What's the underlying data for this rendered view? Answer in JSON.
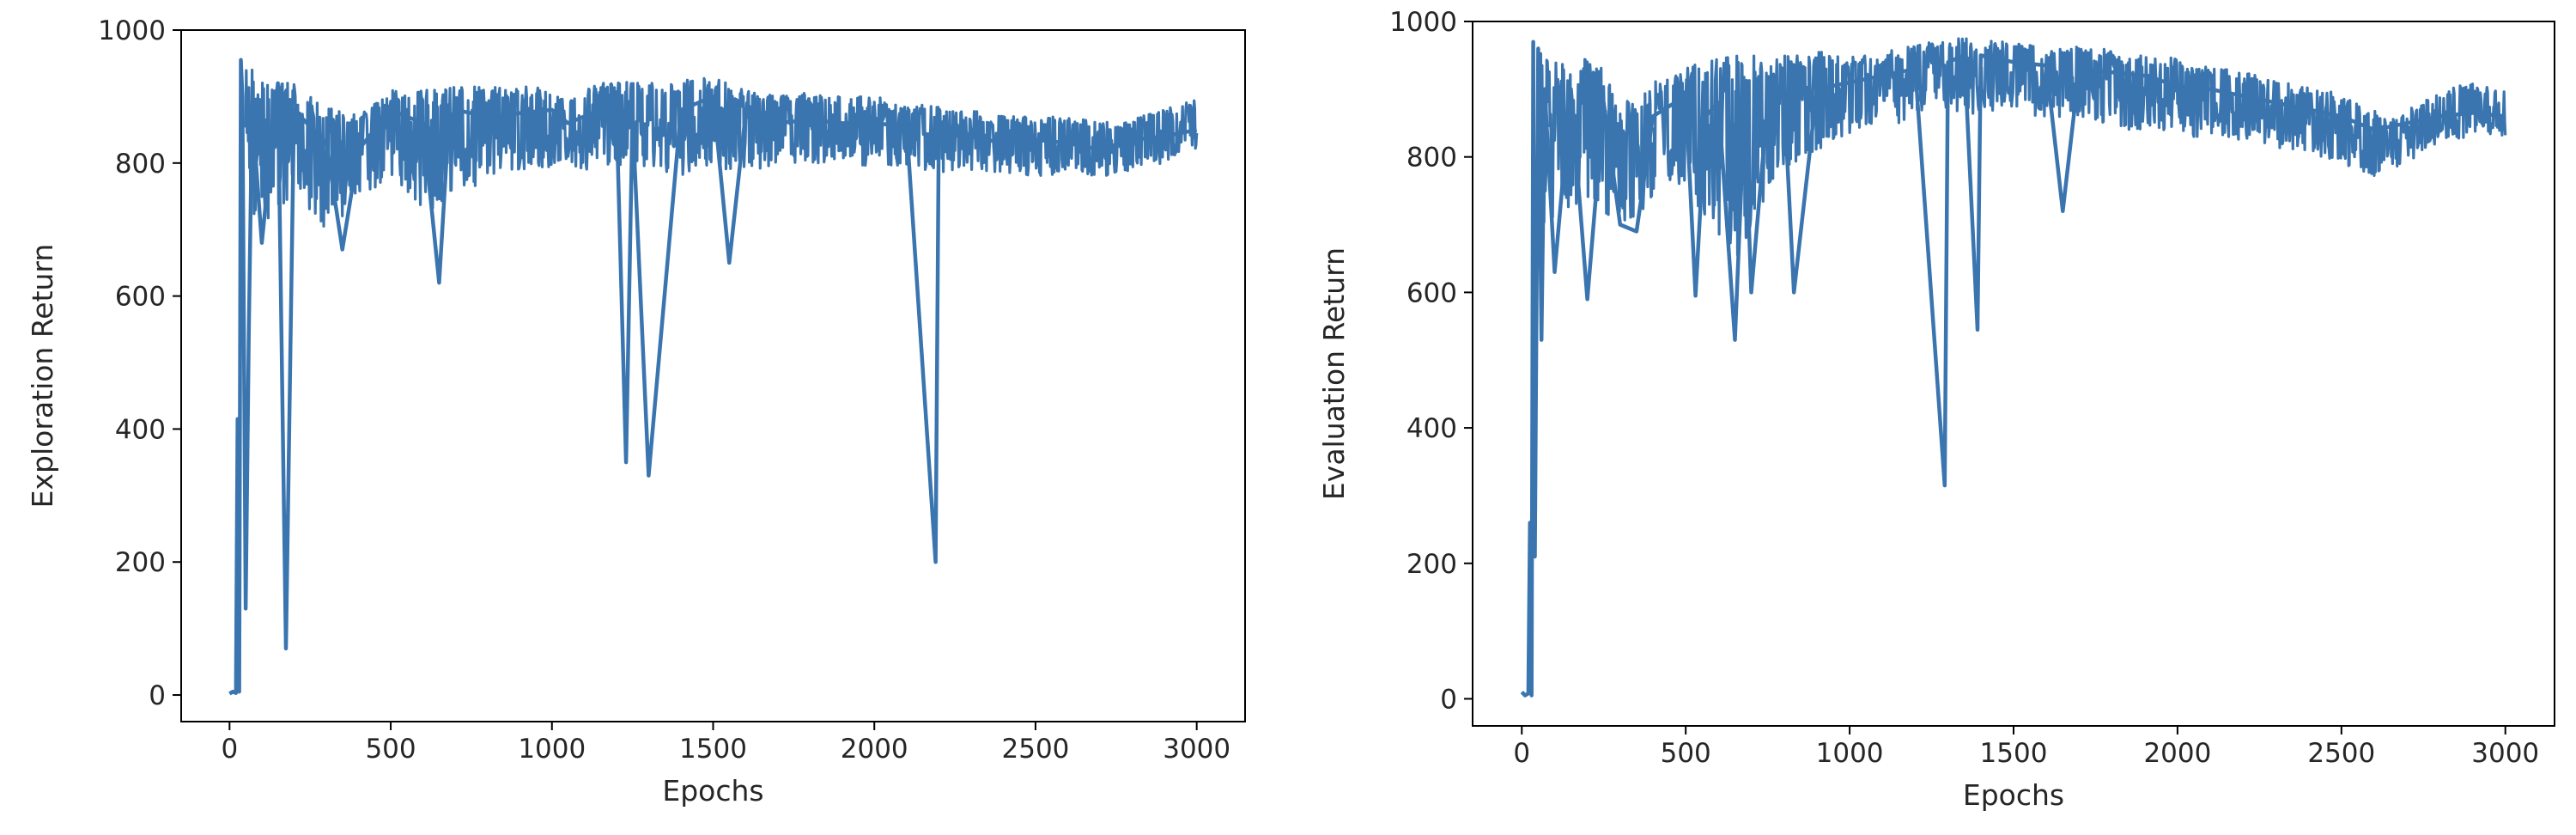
{
  "chart_data": [
    {
      "type": "line",
      "xlabel": "Epochs",
      "ylabel": "Exploration Return",
      "xlim": [
        -150,
        3150
      ],
      "ylim": [
        -40,
        1000
      ],
      "xticks": [
        0,
        500,
        1000,
        1500,
        2000,
        2500,
        3000
      ],
      "yticks": [
        0,
        200,
        400,
        600,
        800,
        1000
      ],
      "xtick_labels": [
        "0",
        "500",
        "1000",
        "1500",
        "2000",
        "2500",
        "3000"
      ],
      "ytick_labels": [
        "0",
        "200",
        "400",
        "600",
        "800",
        "1000"
      ],
      "grid": false,
      "color": "#3a75af",
      "series": [
        {
          "x": [
            0,
            10,
            20,
            25,
            30,
            35,
            40,
            50,
            60,
            70,
            100,
            150,
            175,
            200,
            300,
            350,
            400,
            500,
            600,
            650,
            680,
            700,
            800,
            900,
            1000,
            1050,
            1100,
            1200,
            1230,
            1250,
            1300,
            1400,
            1500,
            1550,
            1600,
            1700,
            1800,
            1900,
            2000,
            2100,
            2190,
            2200,
            2300,
            2400,
            2500,
            2600,
            2700,
            2800,
            2900,
            3000
          ],
          "y": [
            2,
            5,
            3,
            415,
            5,
            955,
            900,
            130,
            550,
            880,
            680,
            920,
            70,
            880,
            830,
            670,
            820,
            880,
            860,
            620,
            860,
            880,
            870,
            875,
            880,
            860,
            870,
            880,
            350,
            870,
            330,
            880,
            900,
            650,
            870,
            860,
            865,
            860,
            860,
            855,
            200,
            850,
            840,
            830,
            835,
            830,
            820,
            835,
            840,
            850
          ],
          "band": {
            "x": [
              50,
              100,
              150,
              200,
              250,
              300,
              350,
              400,
              450,
              500,
              550,
              600,
              650,
              700,
              750,
              800,
              850,
              900,
              950,
              1000,
              1050,
              1100,
              1150,
              1200,
              1250,
              1300,
              1350,
              1400,
              1450,
              1500,
              1550,
              1600,
              1650,
              1700,
              1750,
              1800,
              1850,
              1900,
              1950,
              2000,
              2050,
              2100,
              2150,
              2200,
              2250,
              2300,
              2350,
              2400,
              2450,
              2500,
              2550,
              2600,
              2650,
              2700,
              2750,
              2800,
              2850,
              2900,
              2950,
              3000
            ],
            "upper": [
              950,
              930,
              920,
              920,
              900,
              890,
              880,
              870,
              900,
              910,
              905,
              915,
              910,
              920,
              915,
              915,
              920,
              915,
              915,
              910,
              890,
              915,
              920,
              925,
              920,
              925,
              920,
              925,
              925,
              930,
              920,
              910,
              905,
              900,
              905,
              905,
              900,
              905,
              900,
              900,
              895,
              890,
              890,
              885,
              880,
              880,
              875,
              870,
              870,
              870,
              870,
              870,
              870,
              865,
              860,
              865,
              875,
              880,
              890,
              895
            ],
            "lower": [
              720,
              700,
              720,
              750,
              720,
              700,
              700,
              720,
              760,
              780,
              760,
              720,
              740,
              760,
              760,
              780,
              790,
              790,
              790,
              790,
              800,
              790,
              790,
              800,
              790,
              790,
              780,
              780,
              790,
              790,
              790,
              795,
              790,
              800,
              800,
              800,
              800,
              800,
              795,
              795,
              790,
              790,
              790,
              780,
              790,
              785,
              780,
              780,
              775,
              775,
              780,
              780,
              780,
              780,
              780,
              790,
              795,
              800,
              810,
              820
            ]
          }
        }
      ]
    },
    {
      "type": "line",
      "xlabel": "Epochs",
      "ylabel": "Evaluation Return",
      "xlim": [
        -150,
        3150
      ],
      "ylim": [
        -40,
        1000
      ],
      "xticks": [
        0,
        500,
        1000,
        1500,
        2000,
        2500,
        3000
      ],
      "yticks": [
        0,
        200,
        400,
        600,
        800,
        1000
      ],
      "xtick_labels": [
        "0",
        "500",
        "1000",
        "1500",
        "2000",
        "2500",
        "3000"
      ],
      "ytick_labels": [
        "0",
        "200",
        "400",
        "600",
        "800",
        "1000"
      ],
      "grid": false,
      "color": "#3a75af",
      "series": [
        {
          "x": [
            0,
            10,
            20,
            25,
            30,
            35,
            40,
            50,
            60,
            70,
            100,
            150,
            200,
            250,
            300,
            350,
            400,
            500,
            530,
            560,
            600,
            650,
            680,
            700,
            750,
            800,
            830,
            900,
            1000,
            1100,
            1200,
            1290,
            1300,
            1350,
            1390,
            1400,
            1500,
            1600,
            1650,
            1700,
            1800,
            1900,
            2000,
            2100,
            2200,
            2300,
            2400,
            2500,
            2600,
            2700,
            2800,
            2900,
            3000
          ],
          "y": [
            10,
            5,
            8,
            260,
            5,
            970,
            210,
            960,
            530,
            900,
            630,
            900,
            590,
            880,
            700,
            690,
            860,
            890,
            595,
            860,
            880,
            530,
            880,
            600,
            880,
            890,
            600,
            900,
            910,
            920,
            930,
            315,
            940,
            950,
            545,
            950,
            940,
            935,
            720,
            930,
            925,
            920,
            905,
            900,
            890,
            880,
            870,
            860,
            840,
            850,
            860,
            865,
            860
          ],
          "band": {
            "x": [
              50,
              100,
              150,
              200,
              250,
              300,
              350,
              400,
              450,
              500,
              550,
              600,
              650,
              700,
              750,
              800,
              850,
              900,
              950,
              1000,
              1050,
              1100,
              1150,
              1200,
              1250,
              1300,
              1350,
              1400,
              1450,
              1500,
              1550,
              1600,
              1650,
              1700,
              1750,
              1800,
              1850,
              1900,
              1950,
              2000,
              2050,
              2100,
              2150,
              2200,
              2250,
              2300,
              2350,
              2400,
              2450,
              2500,
              2550,
              2600,
              2650,
              2700,
              2750,
              2800,
              2850,
              2900,
              2950,
              3000
            ],
            "upper": [
              965,
              940,
              940,
              945,
              930,
              880,
              890,
              910,
              920,
              935,
              940,
              945,
              950,
              950,
              945,
              950,
              950,
              955,
              955,
              950,
              950,
              955,
              960,
              965,
              970,
              975,
              975,
              975,
              970,
              970,
              965,
              960,
              965,
              965,
              960,
              960,
              950,
              950,
              950,
              945,
              940,
              935,
              930,
              925,
              920,
              915,
              910,
              905,
              900,
              890,
              880,
              870,
              860,
              870,
              885,
              895,
              905,
              910,
              905,
              900
            ],
            "lower": [
              700,
              700,
              720,
              740,
              720,
              700,
              700,
              740,
              760,
              760,
              700,
              680,
              640,
              700,
              740,
              770,
              800,
              810,
              820,
              830,
              840,
              850,
              850,
              860,
              870,
              870,
              860,
              860,
              870,
              870,
              860,
              860,
              850,
              860,
              850,
              850,
              840,
              840,
              840,
              840,
              830,
              830,
              830,
              820,
              820,
              810,
              810,
              800,
              800,
              790,
              780,
              770,
              770,
              790,
              810,
              820,
              825,
              830,
              830,
              830
            ]
          }
        }
      ]
    }
  ]
}
